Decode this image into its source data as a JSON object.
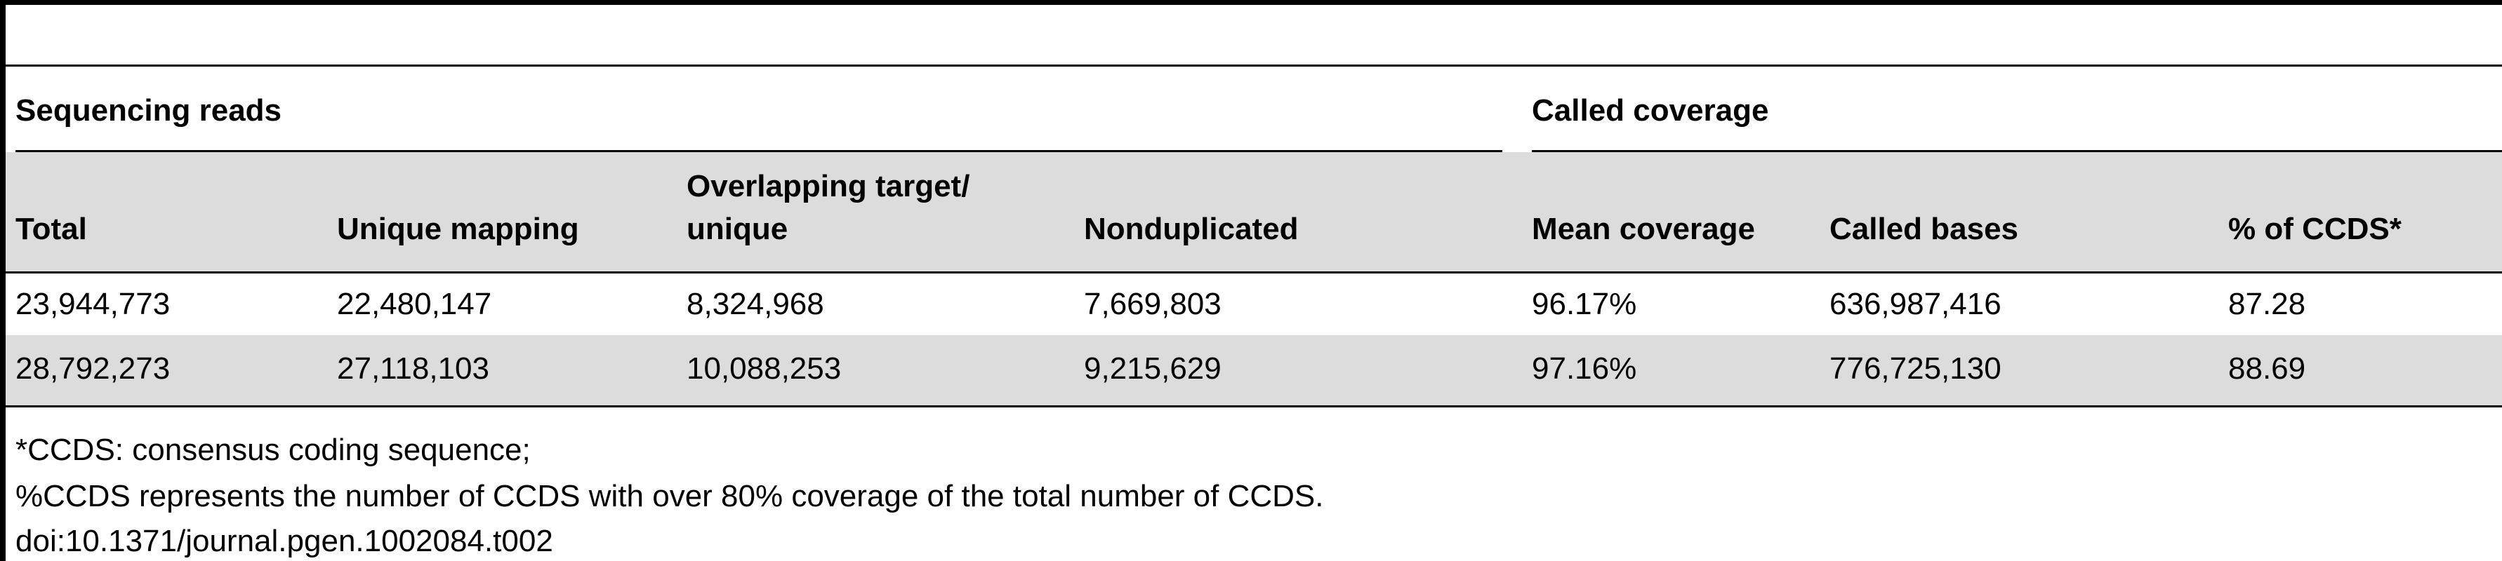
{
  "table": {
    "group_headers": {
      "left": "Sequencing reads",
      "right": "Called coverage"
    },
    "columns": {
      "total": "Total",
      "unique_mapping": "Unique mapping",
      "overlapping_line1": "Overlapping target/",
      "overlapping_line2": "unique",
      "nonduplicated": "Nonduplicated",
      "mean_coverage": "Mean coverage",
      "called_bases": "Called bases",
      "pct_ccds": "% of CCDS*"
    },
    "rows": [
      {
        "total": "23,944,773",
        "unique_mapping": "22,480,147",
        "overlapping": "8,324,968",
        "nonduplicated": "7,669,803",
        "mean_coverage": "96.17%",
        "called_bases": "636,987,416",
        "pct_ccds": "87.28"
      },
      {
        "total": "28,792,273",
        "unique_mapping": "27,118,103",
        "overlapping": "10,088,253",
        "nonduplicated": "9,215,629",
        "mean_coverage": "97.16%",
        "called_bases": "776,725,130",
        "pct_ccds": "88.69"
      }
    ]
  },
  "footnotes": {
    "line1": "*CCDS: consensus coding sequence;",
    "line2": "%CCDS represents the number of CCDS with over 80% coverage of the total number of CCDS.",
    "doi": "doi:10.1371/journal.pgen.1002084.t002"
  }
}
